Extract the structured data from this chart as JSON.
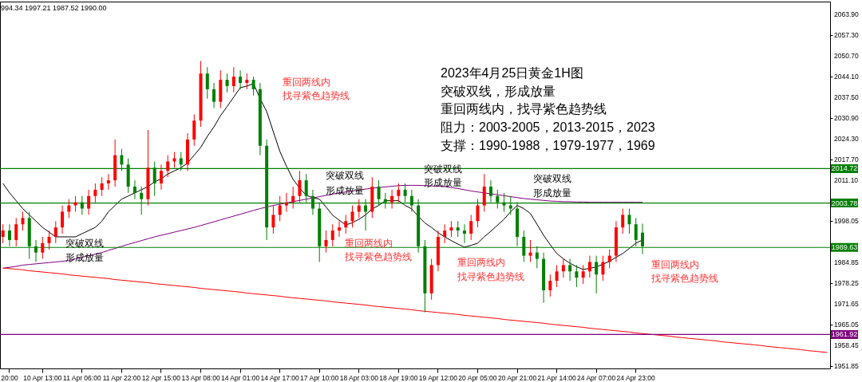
{
  "chart_data": {
    "type": "candlestick",
    "title": "2023年4月25日黄金1H图",
    "categories": [
      null,
      "20:00",
      null,
      null,
      null,
      null,
      "10 Apr 13:00",
      null,
      null,
      null,
      null,
      null,
      "11 Apr 06:00",
      null,
      null,
      null,
      null,
      null,
      "11 Apr 22:00",
      null,
      null,
      null,
      null,
      null,
      "12 Apr 15:00",
      null,
      null,
      null,
      null,
      null,
      "13 Apr 08:00",
      null,
      null,
      null,
      null,
      null,
      "14 Apr 01:00",
      null,
      null,
      null,
      null,
      null,
      "14 Apr 17:00",
      null,
      null,
      null,
      null,
      null,
      "17 Apr 10:00",
      null,
      null,
      null,
      null,
      null,
      "18 Apr 03:00",
      null,
      null,
      null,
      null,
      null,
      "18 Apr 19:00",
      null,
      null,
      null,
      null,
      null,
      "19 Apr 12:00",
      null,
      null,
      null,
      null,
      null,
      "20 Apr 05:00",
      null,
      null,
      null,
      null,
      null,
      "20 Apr 21:00",
      null,
      null,
      null,
      null,
      null,
      "21 Apr 14:00",
      null,
      null,
      null,
      null,
      null,
      "24 Apr 07:00",
      null,
      null,
      null,
      null,
      null,
      "24 Apr 23:00",
      null,
      null,
      null,
      null,
      null,
      null,
      null,
      null,
      null,
      null,
      null,
      null,
      null,
      null,
      null,
      null,
      null,
      null,
      null,
      null,
      null,
      null,
      null,
      null,
      null,
      null,
      null,
      null,
      null
    ],
    "ohlc": [
      [
        1993,
        1997,
        1991,
        1995
      ],
      [
        1995,
        1997,
        1990,
        1992
      ],
      [
        1992,
        1999,
        1990,
        1997
      ],
      [
        1997,
        2001,
        1995,
        1999
      ],
      [
        1999,
        2001,
        1986,
        1990
      ],
      [
        1990,
        1992,
        1985,
        1988
      ],
      [
        1988,
        1993,
        1986,
        1991
      ],
      [
        1991,
        1995,
        1989,
        1993
      ],
      [
        1993,
        1998,
        1991,
        1996
      ],
      [
        1996,
        2003,
        1994,
        2001
      ],
      [
        2001,
        2005,
        1999,
        2003
      ],
      [
        2003,
        2006,
        2001,
        2004
      ],
      [
        2004,
        2006,
        2000,
        2002
      ],
      [
        2002,
        2008,
        2000,
        2006
      ],
      [
        2006,
        2010,
        2004,
        2008
      ],
      [
        2008,
        2012,
        2006,
        2010
      ],
      [
        2010,
        2013,
        2008,
        2011
      ],
      [
        2011,
        2024,
        2009,
        2019
      ],
      [
        2019,
        2021,
        2014,
        2016
      ],
      [
        2016,
        2018,
        2007,
        2009
      ],
      [
        2009,
        2011,
        2005,
        2007
      ],
      [
        2007,
        2009,
        2000,
        2005
      ],
      [
        2005,
        2027,
        2003,
        2015
      ],
      [
        2015,
        2017,
        2006,
        2010
      ],
      [
        2010,
        2016,
        2008,
        2014
      ],
      [
        2014,
        2019,
        2012,
        2017
      ],
      [
        2017,
        2020,
        2015,
        2018
      ],
      [
        2018,
        2020,
        2014,
        2016
      ],
      [
        2016,
        2026,
        2014,
        2024
      ],
      [
        2024,
        2032,
        2022,
        2030
      ],
      [
        2030,
        2049,
        2028,
        2045
      ],
      [
        2045,
        2047,
        2037,
        2040
      ],
      [
        2040,
        2042,
        2034,
        2036
      ],
      [
        2036,
        2046,
        2034,
        2043
      ],
      [
        2043,
        2045,
        2039,
        2041
      ],
      [
        2041,
        2047,
        2039,
        2044
      ],
      [
        2044,
        2046,
        2040,
        2042
      ],
      [
        2042,
        2045,
        2040,
        2043
      ],
      [
        2043,
        2044,
        2038,
        2040
      ],
      [
        2040,
        2042,
        2019,
        2022
      ],
      [
        2022,
        2024,
        1992,
        1996
      ],
      [
        1996,
        2003,
        1994,
        2000
      ],
      [
        2000,
        2006,
        1998,
        2003
      ],
      [
        2003,
        2007,
        2001,
        2004
      ],
      [
        2004,
        2009,
        2002,
        2006
      ],
      [
        2006,
        2014,
        2004,
        2011
      ],
      [
        2011,
        2013,
        2004,
        2006
      ],
      [
        2006,
        2008,
        2000,
        2002
      ],
      [
        2002,
        2004,
        1985,
        1990
      ],
      [
        1990,
        1995,
        1988,
        1992
      ],
      [
        1992,
        1997,
        1990,
        1995
      ],
      [
        1995,
        1998,
        1993,
        1996
      ],
      [
        1996,
        2000,
        1994,
        1998
      ],
      [
        1998,
        2003,
        1996,
        2001
      ],
      [
        2001,
        2005,
        1999,
        2003
      ],
      [
        2003,
        2005,
        1995,
        2001
      ],
      [
        2001,
        2012,
        1999,
        2009
      ],
      [
        2009,
        2011,
        2003,
        2005
      ],
      [
        2005,
        2007,
        2002,
        2004
      ],
      [
        2004,
        2008,
        2002,
        2006
      ],
      [
        2006,
        2010,
        2004,
        2008
      ],
      [
        2008,
        2010,
        2004,
        2006
      ],
      [
        2006,
        2008,
        2001,
        2003
      ],
      [
        2003,
        2005,
        1988,
        1990
      ],
      [
        1990,
        1992,
        1969,
        1975
      ],
      [
        1975,
        1986,
        1973,
        1984
      ],
      [
        1984,
        1995,
        1982,
        1993
      ],
      [
        1993,
        1997,
        1991,
        1995
      ],
      [
        1995,
        1998,
        1993,
        1996
      ],
      [
        1996,
        1998,
        1993,
        1995
      ],
      [
        1995,
        1997,
        1991,
        1994
      ],
      [
        1994,
        2000,
        1992,
        1998
      ],
      [
        1998,
        2005,
        1996,
        2003
      ],
      [
        2003,
        2013,
        2001,
        2009
      ],
      [
        2009,
        2011,
        2004,
        2006
      ],
      [
        2006,
        2008,
        2002,
        2004
      ],
      [
        2004,
        2007,
        2001,
        2003
      ],
      [
        2003,
        2006,
        2000,
        2002
      ],
      [
        2002,
        2004,
        1990,
        1993
      ],
      [
        1993,
        1995,
        1985,
        1987
      ],
      [
        1987,
        1992,
        1985,
        1988
      ],
      [
        1988,
        1990,
        1983,
        1986
      ],
      [
        1986,
        1988,
        1972,
        1976
      ],
      [
        1976,
        1981,
        1974,
        1979
      ],
      [
        1979,
        1984,
        1977,
        1982
      ],
      [
        1982,
        1986,
        1980,
        1984
      ],
      [
        1984,
        1986,
        1979,
        1982
      ],
      [
        1982,
        1984,
        1977,
        1980
      ],
      [
        1980,
        1984,
        1978,
        1982
      ],
      [
        1982,
        1987,
        1980,
        1985
      ],
      [
        1985,
        1987,
        1975,
        1981
      ],
      [
        1981,
        1987,
        1979,
        1985
      ],
      [
        1985,
        1989,
        1983,
        1987
      ],
      [
        1987,
        1998,
        1985,
        1996
      ],
      [
        1996,
        2002,
        1994,
        2000
      ],
      [
        2000,
        2002,
        1994,
        1997
      ],
      [
        1997,
        1999,
        1990,
        1992
      ],
      [
        1994.34,
        1997.21,
        1987.52,
        1990.0
      ],
      null,
      null,
      null,
      null,
      null,
      null,
      null,
      null,
      null,
      null,
      null,
      null,
      null,
      null,
      null,
      null,
      null,
      null,
      null,
      null,
      null,
      null,
      null,
      null,
      null,
      null,
      null,
      null
    ],
    "colors": [
      "#ff0000",
      "#008000",
      "#ff0000",
      "#ff0000",
      "#008000",
      "#008000",
      "#ff0000",
      "#ff0000",
      "#ff0000",
      "#ff0000",
      "#ff0000",
      "#ff0000",
      "#008000",
      "#ff0000",
      "#ff0000",
      "#ff0000",
      "#ff0000",
      "#ff0000",
      "#008000",
      "#008000",
      "#008000",
      "#008000",
      "#ff0000",
      "#008000",
      "#ff0000",
      "#ff0000",
      "#ff0000",
      "#008000",
      "#ff0000",
      "#ff0000",
      "#ff0000",
      "#008000",
      "#008000",
      "#ff0000",
      "#008000",
      "#ff0000",
      "#008000",
      "#ff0000",
      "#008000",
      "#008000",
      "#008000",
      "#ff0000",
      "#ff0000",
      "#ff0000",
      "#ff0000",
      "#ff0000",
      "#008000",
      "#008000",
      "#008000",
      "#ff0000",
      "#ff0000",
      "#ff0000",
      "#ff0000",
      "#ff0000",
      "#ff0000",
      "#008000",
      "#ff0000",
      "#008000",
      "#008000",
      "#ff0000",
      "#ff0000",
      "#008000",
      "#008000",
      "#008000",
      "#008000",
      "#ff0000",
      "#ff0000",
      "#ff0000",
      "#ff0000",
      "#008000",
      "#008000",
      "#ff0000",
      "#ff0000",
      "#ff0000",
      "#008000",
      "#008000",
      "#008000",
      "#008000",
      "#008000",
      "#008000",
      "#ff0000",
      "#008000",
      "#008000",
      "#ff0000",
      "#ff0000",
      "#ff0000",
      "#008000",
      "#008000",
      "#ff0000",
      "#ff0000",
      "#008000",
      "#ff0000",
      "#ff0000",
      "#ff0000",
      "#ff0000",
      "#008000",
      "#008000",
      "#008000",
      null,
      null,
      null,
      null,
      null,
      null,
      null,
      null,
      null,
      null,
      null,
      null,
      null,
      null,
      null,
      null,
      null,
      null,
      null,
      null,
      null,
      null,
      null,
      null,
      null,
      null,
      null,
      null
    ],
    "series": [
      {
        "type": "line",
        "color": "#000000",
        "values": [
          2010,
          2007,
          2004.5,
          2002,
          2000,
          1998,
          1996,
          1994.5,
          1993,
          1993,
          1993,
          1993,
          1994,
          1995,
          1996,
          1998,
          2001,
          2003,
          2005,
          2006,
          2007,
          2008,
          2009,
          2010.5,
          2011.5,
          2013,
          2014,
          2015,
          2016.5,
          2019,
          2021.5,
          2025,
          2028,
          2031.6,
          2034.5,
          2037.5,
          2040.5,
          2041,
          2041.8,
          2037,
          2032.9,
          2026.5,
          2020.2,
          2015.5,
          2011.3,
          2008.5,
          2006.2,
          2005.5,
          2005,
          2002.5,
          1999.9,
          1998.3,
          1996.8,
          1997.5,
          1998.6,
          2000,
          2001.9,
          2003,
          2004.5,
          2004.5,
          2004.5,
          2003,
          2001.9,
          1999.5,
          1997.4,
          1996,
          1994.3,
          1993,
          1991.8,
          1990.7,
          1989.7,
          1990.3,
          1991,
          1993,
          1994.8,
          1996.7,
          1998.6,
          2001,
          2003,
          2002,
          2000.4,
          1997,
          1993.5,
          1990.5,
          1987.7,
          1986,
          1984.6,
          1983.5,
          1982.6,
          1983,
          1983.4,
          1984.3,
          1985.2,
          1986.5,
          1987.7,
          1989.3,
          1991,
          1992,
          null,
          null,
          null,
          null,
          null,
          null,
          null,
          null,
          null,
          null,
          null,
          null,
          null,
          null,
          null,
          null,
          null,
          null,
          null,
          null,
          null,
          null,
          null,
          null,
          null,
          null,
          null,
          null
        ]
      },
      {
        "type": "line",
        "color": "#800080",
        "values": [
          1983,
          1983.3,
          1983.6,
          1984,
          1984.2,
          1984.4,
          1984.6,
          1984.8,
          1985,
          1985.2,
          1985.5,
          1986,
          1986.5,
          1987,
          1987.5,
          1988,
          1988.7,
          1989.3,
          1990,
          1990.6,
          1991.2,
          1991.8,
          1992.4,
          1993,
          1993.5,
          1994,
          1994.5,
          1995,
          1995.5,
          1996,
          1996.6,
          1997.2,
          1997.8,
          1998.4,
          1999,
          1999.6,
          2000.2,
          2000.8,
          2001.4,
          2002,
          2002.5,
          2003,
          2003.4,
          2003.8,
          2004.2,
          2004.6,
          2005,
          2005.4,
          2005.8,
          2006.2,
          2006.6,
          2007,
          2007.3,
          2007.6,
          2007.9,
          2008.2,
          2008.5,
          2008.7,
          2008.9,
          2009.1,
          2009.3,
          2009.4,
          2009.4,
          2009.4,
          2009.3,
          2009.2,
          2009.1,
          2009,
          2008.7,
          2008.4,
          2008,
          2007.6,
          2007.3,
          2007,
          2006.7,
          2006.4,
          2006.1,
          2005.8,
          2005.5,
          2005.2,
          2005,
          2004.8,
          2004.6,
          2004.4,
          2004.3,
          2004.2,
          2004.2,
          2004.1,
          2004.1,
          2004,
          2004,
          2004,
          2004,
          2004,
          2004,
          2004,
          2004,
          2004,
          null,
          null,
          null,
          null,
          null,
          null,
          null,
          null,
          null,
          null,
          null,
          null,
          null,
          null,
          null,
          null,
          null,
          null,
          null,
          null,
          null,
          null,
          null,
          null,
          null,
          null,
          null,
          null
        ]
      },
      {
        "type": "line",
        "color": "#ff0000",
        "values": [
          1983.1,
          1982.9,
          1982.7,
          1982.5,
          1982.2,
          1982.0,
          1981.8,
          1981.6,
          1981.4,
          1981.2,
          1980.9,
          1980.7,
          1980.5,
          1980.3,
          1980.1,
          1979.9,
          1979.7,
          1979.4,
          1979.2,
          1979.0,
          1978.8,
          1978.6,
          1978.4,
          1978.1,
          1977.9,
          1977.7,
          1977.5,
          1977.3,
          1977.1,
          1976.9,
          1976.6,
          1976.4,
          1976.2,
          1976.0,
          1975.8,
          1975.6,
          1975.4,
          1975.1,
          1974.9,
          1974.7,
          1974.5,
          1974.3,
          1974.1,
          1973.8,
          1973.6,
          1973.4,
          1973.2,
          1973.0,
          1972.8,
          1972.6,
          1972.3,
          1972.1,
          1971.9,
          1971.7,
          1971.5,
          1971.3,
          1971.0,
          1970.8,
          1970.6,
          1970.4,
          1970.2,
          1970.0,
          1969.8,
          1969.5,
          1969.3,
          1969.1,
          1968.9,
          1968.7,
          1968.5,
          1968.3,
          1968.0,
          1967.8,
          1967.6,
          1967.4,
          1967.2,
          1967.0,
          1966.7,
          1966.5,
          1966.3,
          1966.1,
          1965.9,
          1965.7,
          1965.5,
          1965.2,
          1965.0,
          1964.8,
          1964.6,
          1964.4,
          1964.2,
          1963.9,
          1963.7,
          1963.5,
          1963.3,
          1963.1,
          1962.9,
          1962.7,
          1962.4,
          1962.2,
          1962.0,
          1961.8,
          1961.6,
          1961.4,
          1961.1,
          1960.9,
          1960.7,
          1960.5,
          1960.3,
          1960.1,
          1959.9,
          1959.6,
          1959.4,
          1959.2,
          1959.0,
          1958.8,
          1958.6,
          1958.4,
          1958.1,
          1957.9,
          1957.7,
          1957.5,
          1957.3,
          1957.1,
          1956.8,
          1956.6,
          1956.4,
          1956.2
        ]
      }
    ],
    "ylim": [
      1951.1,
      2067.9
    ],
    "yticks": [
      1951.85,
      1958.45,
      1965.05,
      1971.65,
      1978.25,
      1984.85,
      1998.05,
      {
        "value": 2011.1,
        "label": "2011.10"
      },
      {
        "value": 2017.7,
        "label": "2017.70"
      },
      {
        "value": 2024.3,
        "label": "2024.30"
      },
      {
        "value": 2030.9,
        "label": "2030.90"
      },
      {
        "value": 2037.5,
        "label": "2037.50"
      },
      {
        "value": 2044.1,
        "label": "2044.10"
      },
      {
        "value": 2050.7,
        "label": "2050.70"
      },
      {
        "value": 2057.3,
        "label": "2057.30"
      },
      {
        "value": 2063.9,
        "label": "2063.90"
      }
    ],
    "ref_lines": [
      {
        "axis": "y",
        "value": 2014.72,
        "label": "2014.72",
        "color": "#008000"
      },
      {
        "axis": "y",
        "value": 2003.78,
        "label": "2003.78",
        "color": "#008000"
      },
      {
        "axis": "y",
        "value": 1989.63,
        "label": "1989.63",
        "color": "#008000"
      },
      {
        "axis": "y",
        "value": 1961.92,
        "label": "1961.92",
        "color": "#800080"
      }
    ],
    "annotations": [
      "994.34 1997.21 1987.52 1990.00",
      "突破双线，形成放量",
      "重回两线内，找寻紫色趋势线",
      "阻力：2003-2005，2013-2015，2023",
      "支撑：1990-1988，1979-1977，1969",
      "突破双线",
      "形成放量",
      "突破双线",
      "形成放量",
      "突破双线",
      "形成放量",
      "突破双线",
      "形成放量",
      "重回两线内",
      "找寻紫色趋势线",
      "重回两线内",
      "找寻紫色趋势线",
      "重回两线内",
      "找寻紫色趋势线",
      "重回两线内",
      "找寻紫色趋势线"
    ],
    "grid": false
  }
}
